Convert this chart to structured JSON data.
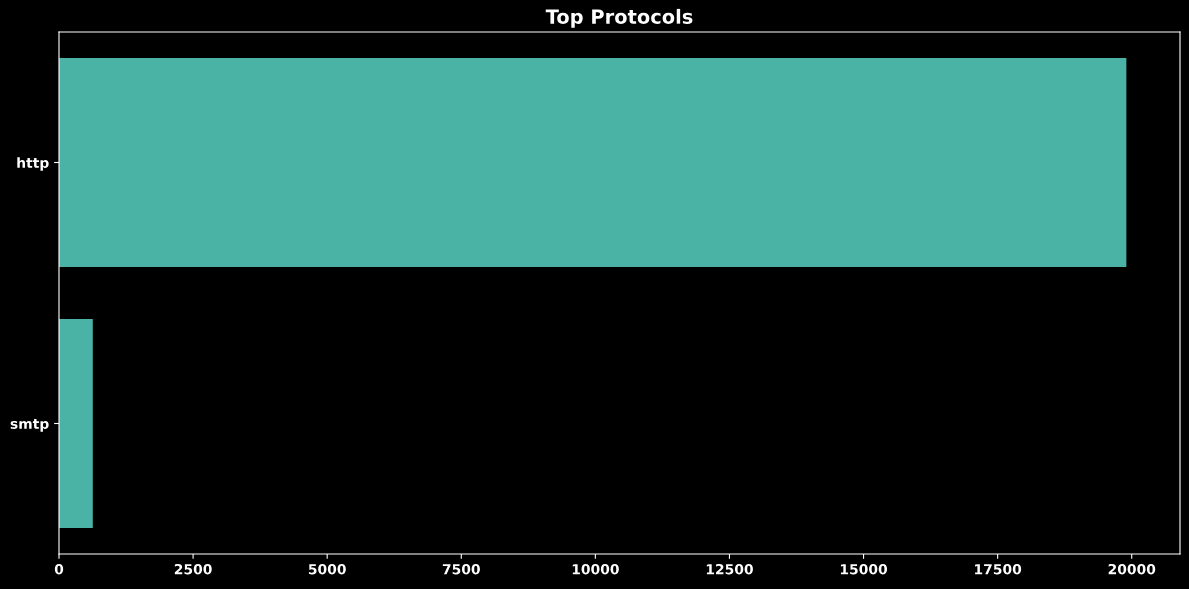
{
  "chart_data": {
    "type": "bar",
    "orientation": "horizontal",
    "title": "Top Protocols",
    "categories": [
      "http",
      "smtp"
    ],
    "values": [
      19900,
      630
    ],
    "color": "#4ab3a6",
    "xlim": [
      0,
      20900
    ],
    "xticks": [
      0,
      2500,
      5000,
      7500,
      10000,
      12500,
      15000,
      17500,
      20000
    ],
    "grid": false,
    "legend": false
  }
}
